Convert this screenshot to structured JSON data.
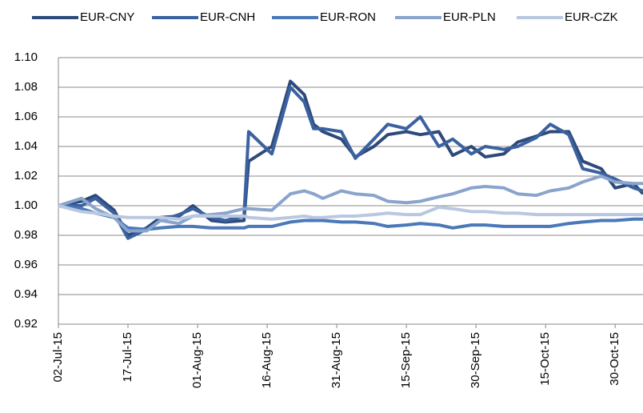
{
  "chart_data": {
    "type": "line",
    "x": [
      "02-Jul-15",
      "07-Jul-15",
      "10-Jul-15",
      "14-Jul-15",
      "17-Jul-15",
      "21-Jul-15",
      "24-Jul-15",
      "28-Jul-15",
      "31-Jul-15",
      "04-Aug-15",
      "07-Aug-15",
      "11-Aug-15",
      "12-Aug-15",
      "17-Aug-15",
      "21-Aug-15",
      "24-Aug-15",
      "26-Aug-15",
      "28-Aug-15",
      "01-Sep-15",
      "04-Sep-15",
      "08-Sep-15",
      "11-Sep-15",
      "15-Sep-15",
      "18-Sep-15",
      "22-Sep-15",
      "25-Sep-15",
      "29-Sep-15",
      "02-Oct-15",
      "06-Oct-15",
      "09-Oct-15",
      "13-Oct-15",
      "16-Oct-15",
      "20-Oct-15",
      "23-Oct-15",
      "27-Oct-15",
      "30-Oct-15",
      "03-Nov-15",
      "05-Nov-15"
    ],
    "series": [
      {
        "name": "EUR-CNY",
        "color": "#2e4a7a",
        "values": [
          1.0,
          1.003,
          1.007,
          0.997,
          0.98,
          0.985,
          0.992,
          0.993,
          1.0,
          0.99,
          0.989,
          0.99,
          1.03,
          1.04,
          1.084,
          1.075,
          1.055,
          1.05,
          1.045,
          1.033,
          1.04,
          1.048,
          1.05,
          1.048,
          1.05,
          1.034,
          1.04,
          1.033,
          1.035,
          1.043,
          1.047,
          1.05,
          1.05,
          1.03,
          1.025,
          1.012,
          1.015,
          1.008
        ]
      },
      {
        "name": "EUR-CNH",
        "color": "#3b62a0",
        "values": [
          1.0,
          1.0,
          1.005,
          0.995,
          0.978,
          0.984,
          0.99,
          0.994,
          0.998,
          0.992,
          0.99,
          0.993,
          1.05,
          1.035,
          1.08,
          1.07,
          1.052,
          1.052,
          1.05,
          1.032,
          1.045,
          1.055,
          1.052,
          1.06,
          1.04,
          1.045,
          1.035,
          1.04,
          1.038,
          1.04,
          1.046,
          1.055,
          1.048,
          1.025,
          1.022,
          1.018,
          1.012,
          1.01
        ]
      },
      {
        "name": "EUR-RON",
        "color": "#4a78b8",
        "values": [
          1.0,
          0.998,
          0.995,
          0.992,
          0.985,
          0.984,
          0.985,
          0.986,
          0.986,
          0.985,
          0.985,
          0.985,
          0.986,
          0.986,
          0.989,
          0.99,
          0.99,
          0.99,
          0.989,
          0.989,
          0.988,
          0.986,
          0.987,
          0.988,
          0.987,
          0.985,
          0.987,
          0.987,
          0.986,
          0.986,
          0.986,
          0.986,
          0.988,
          0.989,
          0.99,
          0.99,
          0.991,
          0.991
        ]
      },
      {
        "name": "EUR-PLN",
        "color": "#8aa4cc",
        "values": [
          1.0,
          1.005,
          0.998,
          0.992,
          0.983,
          0.983,
          0.99,
          0.988,
          0.993,
          0.994,
          0.995,
          0.998,
          0.998,
          0.997,
          1.008,
          1.01,
          1.008,
          1.005,
          1.01,
          1.008,
          1.007,
          1.003,
          1.002,
          1.003,
          1.006,
          1.008,
          1.012,
          1.013,
          1.012,
          1.008,
          1.007,
          1.01,
          1.012,
          1.016,
          1.02,
          1.016,
          1.015,
          1.015
        ]
      },
      {
        "name": "EUR-CZK",
        "color": "#b9c8e0",
        "values": [
          1.0,
          0.996,
          0.995,
          0.993,
          0.992,
          0.992,
          0.992,
          0.991,
          0.993,
          0.993,
          0.993,
          0.993,
          0.992,
          0.991,
          0.992,
          0.993,
          0.992,
          0.992,
          0.993,
          0.993,
          0.994,
          0.995,
          0.994,
          0.994,
          0.999,
          0.998,
          0.996,
          0.996,
          0.995,
          0.995,
          0.994,
          0.994,
          0.994,
          0.994,
          0.994,
          0.994,
          0.994,
          0.994
        ]
      }
    ],
    "xlim": [
      "02-Jul-15",
      "05-Nov-15"
    ],
    "xticks": [
      "02-Jul-15",
      "17-Jul-15",
      "01-Aug-15",
      "16-Aug-15",
      "31-Aug-15",
      "15-Sep-15",
      "30-Sep-15",
      "15-Oct-15",
      "30-Oct-15"
    ],
    "ylim": [
      0.92,
      1.1
    ],
    "yticks": [
      0.92,
      0.94,
      0.96,
      0.98,
      {
        "value": 1,
        "label": "1.00"
      },
      1.02,
      1.04,
      1.06,
      1.08,
      {
        "value": 1.1,
        "label": "1.10"
      }
    ],
    "grid": true
  }
}
